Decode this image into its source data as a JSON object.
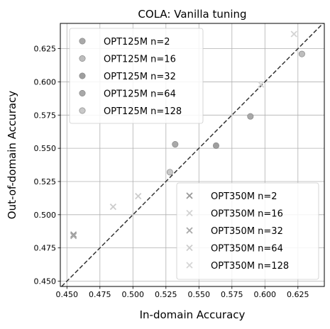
{
  "chart_data": {
    "type": "scatter",
    "title": "COLA: Vanilla tuning",
    "xlabel": "In-domain Accuracy",
    "ylabel": "Out-of-domain Accuracy",
    "xlim": [
      0.445,
      0.645
    ],
    "ylim": [
      0.446,
      0.644
    ],
    "xticks": [
      "0.450",
      "0.475",
      "0.500",
      "0.525",
      "0.550",
      "0.575",
      "0.600",
      "0.625"
    ],
    "yticks": [
      "0.450",
      "0.475",
      "0.500",
      "0.525",
      "0.550",
      "0.575",
      "0.600",
      "0.625"
    ],
    "grid": true,
    "diagonal": "y=x dashed",
    "legends": [
      {
        "placement": "upper-left",
        "entries": [
          "OPT125M n=2",
          "OPT125M n=16",
          "OPT125M n=32",
          "OPT125M n=64",
          "OPT125M n=128"
        ]
      },
      {
        "placement": "lower-right",
        "entries": [
          "OPT350M n=2",
          "OPT350M n=16",
          "OPT350M n=32",
          "OPT350M n=64",
          "OPT350M n=128"
        ]
      }
    ],
    "series": [
      {
        "name": "OPT125M n=2",
        "marker": "circle",
        "color": "#a9a9a9",
        "points": [
          [
            0.532,
            0.553
          ]
        ]
      },
      {
        "name": "OPT125M n=16",
        "marker": "circle",
        "color": "#bdbdbd",
        "points": [
          [
            0.628,
            0.621
          ]
        ]
      },
      {
        "name": "OPT125M n=32",
        "marker": "circle",
        "color": "#9e9e9e",
        "points": [
          [
            0.563,
            0.552
          ]
        ]
      },
      {
        "name": "OPT125M n=64",
        "marker": "circle",
        "color": "#a8a8a8",
        "points": [
          [
            0.589,
            0.574
          ]
        ]
      },
      {
        "name": "OPT125M n=128",
        "marker": "circle",
        "color": "#c8c8c8",
        "points": [
          [
            0.528,
            0.532
          ]
        ]
      },
      {
        "name": "OPT350M n=2",
        "marker": "x",
        "color": "#999999",
        "points": [
          [
            0.455,
            0.485
          ]
        ]
      },
      {
        "name": "OPT350M n=16",
        "marker": "x",
        "color": "#d3d3d3",
        "points": [
          [
            0.622,
            0.636
          ]
        ]
      },
      {
        "name": "OPT350M n=32",
        "marker": "x",
        "color": "#a9a9a9",
        "points": [
          [
            0.455,
            0.484
          ]
        ]
      },
      {
        "name": "OPT350M n=64",
        "marker": "x",
        "color": "#cccccc",
        "points": [
          [
            0.504,
            0.514
          ],
          [
            0.485,
            0.506
          ]
        ]
      },
      {
        "name": "OPT350M n=128",
        "marker": "x",
        "color": "#d6d6d6",
        "points": [
          [
            0.597,
            0.598
          ]
        ]
      }
    ]
  }
}
